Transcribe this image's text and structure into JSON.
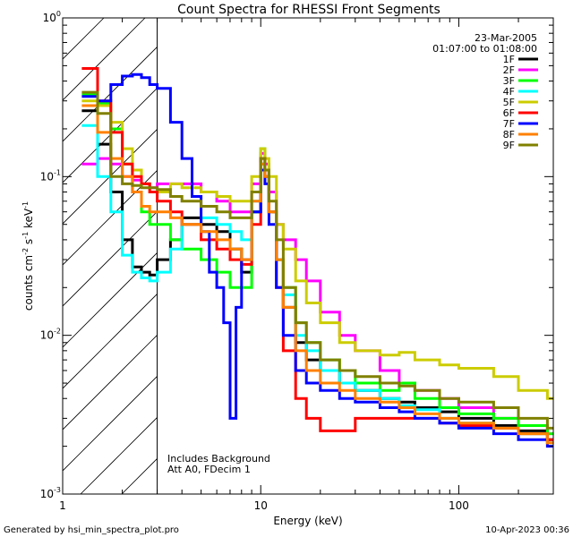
{
  "chart_data": {
    "type": "line",
    "title": "Count Spectra for RHESSI Front Segments",
    "xlabel": "Energy (keV)",
    "ylabel_main": "counts cm",
    "ylabel_exp1": "-2",
    "ylabel_mid": " s",
    "ylabel_exp2": "-1",
    "ylabel_end": " keV",
    "ylabel_exp3": "-1",
    "xscale": "log",
    "yscale": "log",
    "xlim": [
      1,
      300
    ],
    "ylim": [
      0.001,
      1
    ],
    "x_ticks": [
      {
        "value": 1,
        "label": "1"
      },
      {
        "value": 10,
        "label": "10"
      },
      {
        "value": 100,
        "label": "100"
      }
    ],
    "y_ticks": [
      {
        "value": 0.001,
        "base": "10",
        "exp": "-3"
      },
      {
        "value": 0.01,
        "base": "10",
        "exp": "-2"
      },
      {
        "value": 0.1,
        "base": "10",
        "exp": "-1"
      },
      {
        "value": 1,
        "base": "10",
        "exp": "0"
      }
    ],
    "date": "23-Mar-2005",
    "time_range": "01:07:00 to 01:08:00",
    "annotations": [
      "Includes Background",
      "Att A0, FDecim 1"
    ],
    "hatched_region_xmax": 3,
    "series": [
      {
        "name": "1F",
        "color": "#000000",
        "x": [
          1.25,
          1.5,
          1.75,
          2,
          2.25,
          2.5,
          2.75,
          3,
          3.5,
          4,
          5,
          6,
          7,
          8,
          9,
          10,
          10.5,
          11,
          12,
          13,
          15,
          17,
          20,
          25,
          30,
          40,
          50,
          60,
          80,
          100,
          150,
          200,
          280
        ],
        "y": [
          0.26,
          0.16,
          0.08,
          0.04,
          0.027,
          0.025,
          0.024,
          0.03,
          0.04,
          0.055,
          0.05,
          0.045,
          0.035,
          0.025,
          0.06,
          0.12,
          0.1,
          0.06,
          0.03,
          0.015,
          0.009,
          0.007,
          0.006,
          0.005,
          0.0045,
          0.004,
          0.0038,
          0.0035,
          0.0033,
          0.003,
          0.0027,
          0.0025,
          0.0022
        ]
      },
      {
        "name": "2F",
        "color": "#ff00ff",
        "x": [
          1.25,
          1.5,
          1.75,
          2,
          2.25,
          2.5,
          2.75,
          3,
          3.5,
          4,
          5,
          6,
          7,
          8,
          9,
          10,
          10.5,
          11,
          12,
          13,
          15,
          17,
          20,
          25,
          30,
          40,
          50,
          60,
          80,
          100,
          150,
          200,
          280
        ],
        "y": [
          0.12,
          0.13,
          0.12,
          0.1,
          0.095,
          0.09,
          0.085,
          0.09,
          0.09,
          0.09,
          0.08,
          0.07,
          0.06,
          0.06,
          0.09,
          0.14,
          0.12,
          0.08,
          0.05,
          0.04,
          0.03,
          0.022,
          0.014,
          0.01,
          0.008,
          0.006,
          0.005,
          0.0045,
          0.004,
          0.0035,
          0.003,
          0.0027,
          0.0024
        ]
      },
      {
        "name": "3F",
        "color": "#00ff00",
        "x": [
          1.25,
          1.5,
          1.75,
          2,
          2.25,
          2.5,
          2.75,
          3,
          3.5,
          4,
          5,
          6,
          7,
          8,
          9,
          10,
          10.5,
          11,
          12,
          13,
          15,
          17,
          20,
          25,
          30,
          40,
          50,
          60,
          80,
          100,
          150,
          200,
          280
        ],
        "y": [
          0.33,
          0.29,
          0.2,
          0.12,
          0.08,
          0.06,
          0.05,
          0.05,
          0.04,
          0.035,
          0.03,
          0.025,
          0.02,
          0.02,
          0.06,
          0.15,
          0.11,
          0.06,
          0.03,
          0.02,
          0.012,
          0.009,
          0.007,
          0.006,
          0.005,
          0.0045,
          0.005,
          0.004,
          0.0035,
          0.0032,
          0.003,
          0.0027,
          0.0024
        ]
      },
      {
        "name": "4F",
        "color": "#00ffff",
        "x": [
          1.25,
          1.5,
          1.75,
          2,
          2.25,
          2.5,
          2.75,
          3,
          3.5,
          4,
          5,
          6,
          7,
          8,
          9,
          10,
          10.5,
          11,
          12,
          13,
          15,
          17,
          20,
          25,
          30,
          40,
          50,
          60,
          80,
          100,
          150,
          200,
          280
        ],
        "y": [
          0.21,
          0.1,
          0.06,
          0.032,
          0.025,
          0.023,
          0.022,
          0.025,
          0.035,
          0.05,
          0.055,
          0.05,
          0.045,
          0.04,
          0.07,
          0.12,
          0.1,
          0.06,
          0.03,
          0.018,
          0.01,
          0.008,
          0.006,
          0.005,
          0.0045,
          0.004,
          0.0036,
          0.0034,
          0.003,
          0.0028,
          0.0026,
          0.0024,
          0.0021
        ]
      },
      {
        "name": "5F",
        "color": "#cccc00",
        "x": [
          1.25,
          1.5,
          1.75,
          2,
          2.25,
          2.5,
          2.75,
          3,
          3.5,
          4,
          5,
          6,
          7,
          8,
          9,
          10,
          10.5,
          11,
          12,
          13,
          15,
          17,
          20,
          25,
          30,
          40,
          50,
          60,
          80,
          100,
          150,
          200,
          280
        ],
        "y": [
          0.3,
          0.28,
          0.22,
          0.15,
          0.11,
          0.09,
          0.08,
          0.08,
          0.09,
          0.085,
          0.08,
          0.075,
          0.07,
          0.07,
          0.1,
          0.15,
          0.13,
          0.1,
          0.05,
          0.035,
          0.022,
          0.016,
          0.012,
          0.009,
          0.008,
          0.0075,
          0.0078,
          0.007,
          0.0065,
          0.0062,
          0.0055,
          0.0045,
          0.004
        ]
      },
      {
        "name": "6F",
        "color": "#ff0000",
        "x": [
          1.25,
          1.5,
          1.75,
          2,
          2.25,
          2.5,
          2.75,
          3,
          3.5,
          4,
          5,
          6,
          7,
          8,
          9,
          10,
          10.5,
          11,
          12,
          13,
          15,
          17,
          20,
          25,
          30,
          40,
          50,
          60,
          80,
          100,
          150,
          200,
          280
        ],
        "y": [
          0.48,
          0.3,
          0.19,
          0.12,
          0.1,
          0.09,
          0.08,
          0.07,
          0.06,
          0.05,
          0.04,
          0.035,
          0.03,
          0.028,
          0.05,
          0.13,
          0.1,
          0.06,
          0.02,
          0.008,
          0.004,
          0.003,
          0.0025,
          0.0025,
          0.003,
          0.003,
          0.003,
          0.003,
          0.0028,
          0.0027,
          0.0026,
          0.0024,
          0.0022
        ]
      },
      {
        "name": "7F",
        "color": "#0000ff",
        "x": [
          1.25,
          1.5,
          1.75,
          2,
          2.25,
          2.5,
          2.75,
          3,
          3.5,
          4,
          4.5,
          5,
          5.5,
          6,
          6.5,
          7,
          7.5,
          8,
          9,
          10,
          10.5,
          11,
          12,
          13,
          15,
          17,
          20,
          25,
          30,
          40,
          50,
          60,
          80,
          100,
          150,
          200,
          280
        ],
        "y": [
          0.32,
          0.3,
          0.38,
          0.43,
          0.44,
          0.42,
          0.38,
          0.36,
          0.22,
          0.13,
          0.075,
          0.045,
          0.025,
          0.02,
          0.012,
          0.003,
          0.015,
          0.03,
          0.06,
          0.11,
          0.09,
          0.05,
          0.02,
          0.01,
          0.006,
          0.005,
          0.0045,
          0.004,
          0.0038,
          0.0035,
          0.0033,
          0.003,
          0.0028,
          0.0026,
          0.0024,
          0.0022,
          0.002
        ]
      },
      {
        "name": "8F",
        "color": "#ff8000",
        "x": [
          1.25,
          1.5,
          1.75,
          2,
          2.25,
          2.5,
          2.75,
          3,
          3.5,
          4,
          5,
          6,
          7,
          8,
          9,
          10,
          10.5,
          11,
          12,
          13,
          15,
          17,
          20,
          25,
          30,
          40,
          50,
          60,
          80,
          100,
          150,
          200,
          280
        ],
        "y": [
          0.28,
          0.19,
          0.13,
          0.1,
          0.08,
          0.065,
          0.06,
          0.06,
          0.055,
          0.05,
          0.045,
          0.04,
          0.035,
          0.03,
          0.07,
          0.12,
          0.1,
          0.06,
          0.03,
          0.015,
          0.008,
          0.006,
          0.005,
          0.0045,
          0.004,
          0.0038,
          0.0035,
          0.0032,
          0.003,
          0.0028,
          0.0026,
          0.0024,
          0.0021
        ]
      },
      {
        "name": "9F",
        "color": "#808000",
        "x": [
          1.25,
          1.5,
          1.75,
          2,
          2.25,
          2.5,
          2.75,
          3,
          3.5,
          4,
          5,
          6,
          7,
          8,
          9,
          10,
          10.5,
          11,
          12,
          13,
          15,
          17,
          20,
          25,
          30,
          40,
          50,
          60,
          80,
          100,
          150,
          200,
          280
        ],
        "y": [
          0.34,
          0.25,
          0.1,
          0.09,
          0.088,
          0.085,
          0.085,
          0.083,
          0.075,
          0.07,
          0.065,
          0.06,
          0.055,
          0.055,
          0.08,
          0.13,
          0.11,
          0.07,
          0.04,
          0.02,
          0.012,
          0.009,
          0.007,
          0.006,
          0.0055,
          0.005,
          0.0048,
          0.0045,
          0.004,
          0.0038,
          0.0035,
          0.003,
          0.0026
        ]
      }
    ]
  },
  "footer": {
    "generated_by": "Generated by hsi_min_spectra_plot.pro",
    "timestamp": "10-Apr-2023 00:36"
  }
}
